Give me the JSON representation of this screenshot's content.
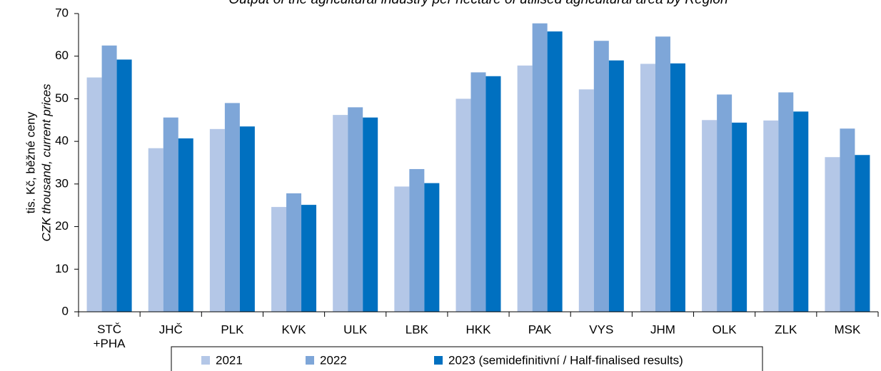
{
  "chart_data": {
    "type": "bar",
    "title": "Output of the agricultural industry per hectare of utilised agricultural area by Region",
    "y_label": [
      "tis. Kč, běžné ceny",
      "CZK thousand, current prices"
    ],
    "categories": [
      "STČ\n+PHA",
      "JHČ",
      "PLK",
      "KVK",
      "ULK",
      "LBK",
      "HKK",
      "PAK",
      "VYS",
      "JHM",
      "OLK",
      "ZLK",
      "MSK"
    ],
    "series": [
      {
        "name": "2021",
        "color": "#b4c7e7",
        "values": [
          55,
          38.4,
          42.9,
          24.6,
          46.2,
          29.4,
          50,
          57.8,
          52.2,
          58.2,
          45,
          44.9,
          36.3
        ]
      },
      {
        "name": "2022",
        "color": "#7ea6d8",
        "values": [
          62.5,
          45.6,
          49,
          27.8,
          48,
          33.5,
          56.2,
          67.7,
          63.6,
          64.6,
          51,
          51.5,
          43
        ]
      },
      {
        "name": "2023 (semidefinitivní / Half-finalised results)",
        "color": "#0070c0",
        "values": [
          59.2,
          40.7,
          43.5,
          25.1,
          45.6,
          30.2,
          55.3,
          65.8,
          59,
          58.3,
          44.4,
          47,
          36.8
        ]
      }
    ],
    "ylim": [
      0,
      70
    ],
    "yticks": [
      0,
      10,
      20,
      30,
      40,
      50,
      60,
      70
    ],
    "grid": false
  }
}
